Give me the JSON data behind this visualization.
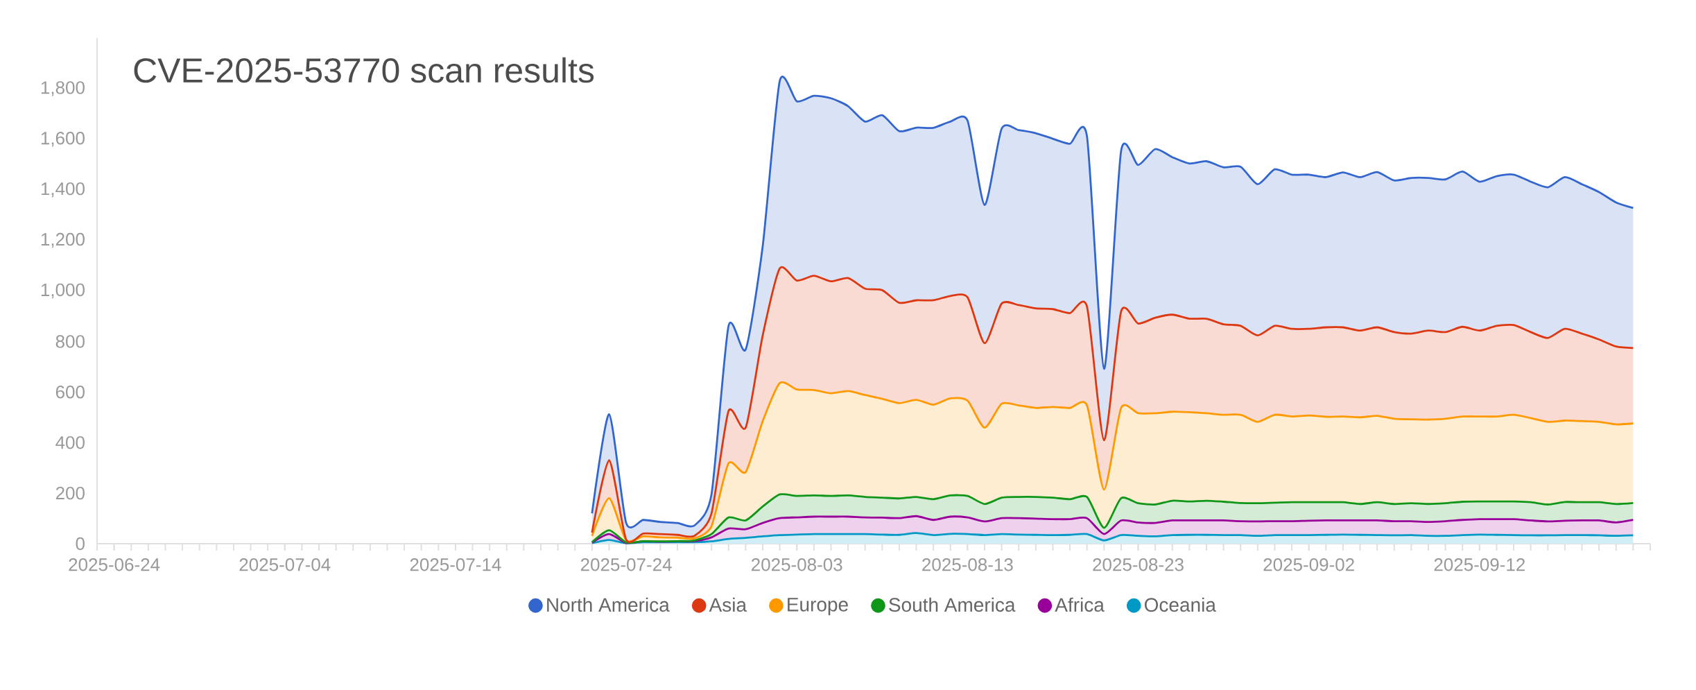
{
  "chart_data": {
    "type": "area",
    "title": "CVE-2025-53770 scan results",
    "stacked": true,
    "legend": "bottom",
    "x": [
      "2025-07-22",
      "2025-07-23",
      "2025-07-24",
      "2025-07-25",
      "2025-07-26",
      "2025-07-27",
      "2025-07-28",
      "2025-07-29",
      "2025-07-30",
      "2025-07-31",
      "2025-08-01",
      "2025-08-02",
      "2025-08-03",
      "2025-08-04",
      "2025-08-05",
      "2025-08-06",
      "2025-08-07",
      "2025-08-08",
      "2025-08-09",
      "2025-08-10",
      "2025-08-11",
      "2025-08-12",
      "2025-08-13",
      "2025-08-14",
      "2025-08-15",
      "2025-08-16",
      "2025-08-17",
      "2025-08-18",
      "2025-08-19",
      "2025-08-20",
      "2025-08-21",
      "2025-08-22",
      "2025-08-23",
      "2025-08-24",
      "2025-08-25",
      "2025-08-26",
      "2025-08-27",
      "2025-08-28",
      "2025-08-29",
      "2025-08-30",
      "2025-08-31",
      "2025-09-01",
      "2025-09-02",
      "2025-09-03",
      "2025-09-04",
      "2025-09-05",
      "2025-09-06",
      "2025-09-07",
      "2025-09-08",
      "2025-09-09",
      "2025-09-10",
      "2025-09-11",
      "2025-09-12",
      "2025-09-13",
      "2025-09-14",
      "2025-09-15",
      "2025-09-16",
      "2025-09-17",
      "2025-09-18",
      "2025-09-19",
      "2025-09-20",
      "2025-09-21"
    ],
    "xlim": [
      "2025-06-23",
      "2025-09-22"
    ],
    "xticks": [
      "2025-06-24",
      "2025-07-04",
      "2025-07-14",
      "2025-07-24",
      "2025-08-03",
      "2025-08-13",
      "2025-08-23",
      "2025-09-02",
      "2025-09-12"
    ],
    "ylim": [
      0,
      2000
    ],
    "yticks": [
      0,
      200,
      400,
      600,
      800,
      {
        "value": 1000,
        "label": "1,000"
      },
      {
        "value": 1200,
        "label": "1,200"
      },
      {
        "value": 1400,
        "label": "1,400"
      },
      {
        "value": 1600,
        "label": "1,600"
      },
      {
        "value": 1800,
        "label": "1,800"
      }
    ],
    "series": [
      {
        "name": "Oceania",
        "color": "#0099c6",
        "values": [
          2,
          15,
          2,
          6,
          6,
          6,
          6,
          9,
          19,
          23,
          29,
          34,
          36,
          38,
          38,
          38,
          38,
          36,
          35,
          42,
          34,
          39,
          38,
          34,
          38,
          36,
          35,
          34,
          35,
          38,
          13,
          34,
          31,
          29,
          34,
          35,
          35,
          34,
          34,
          31,
          34,
          34,
          34,
          35,
          36,
          35,
          34,
          33,
          34,
          31,
          31,
          34,
          36,
          35,
          34,
          33,
          33,
          34,
          34,
          33,
          31,
          33
        ]
      },
      {
        "name": "Africa",
        "color": "#990099",
        "values": [
          2,
          23,
          1,
          3,
          2,
          3,
          4,
          16,
          41,
          34,
          53,
          67,
          68,
          69,
          69,
          69,
          66,
          67,
          66,
          67,
          60,
          68,
          66,
          54,
          63,
          65,
          64,
          63,
          62,
          63,
          25,
          58,
          53,
          53,
          58,
          57,
          57,
          58,
          55,
          57,
          55,
          55,
          57,
          57,
          56,
          57,
          58,
          56,
          55,
          55,
          58,
          60,
          61,
          62,
          63,
          59,
          55,
          57,
          58,
          59,
          53,
          61
        ]
      },
      {
        "name": "South America",
        "color": "#109618",
        "values": [
          2,
          15,
          2,
          1,
          1,
          1,
          3,
          13,
          44,
          35,
          65,
          94,
          85,
          84,
          82,
          84,
          81,
          79,
          78,
          76,
          82,
          84,
          85,
          69,
          81,
          84,
          86,
          85,
          79,
          84,
          25,
          88,
          76,
          73,
          78,
          75,
          78,
          74,
          72,
          72,
          73,
          75,
          73,
          72,
          72,
          65,
          72,
          68,
          71,
          71,
          71,
          72,
          70,
          70,
          70,
          72,
          67,
          74,
          72,
          72,
          73,
          67
        ]
      },
      {
        "name": "Europe",
        "color": "#ff9900",
        "values": [
          25,
          127,
          8,
          19,
          16,
          14,
          8,
          31,
          214,
          191,
          338,
          441,
          421,
          417,
          406,
          413,
          403,
          391,
          377,
          384,
          374,
          384,
          377,
          302,
          372,
          362,
          352,
          359,
          361,
          362,
          151,
          357,
          356,
          361,
          352,
          353,
          346,
          344,
          349,
          322,
          348,
          339,
          343,
          338,
          339,
          343,
          342,
          337,
          332,
          334,
          334,
          337,
          336,
          336,
          343,
          333,
          327,
          322,
          321,
          318,
          315,
          315
        ]
      },
      {
        "name": "Asia",
        "color": "#dc3912",
        "values": [
          13,
          150,
          3,
          11,
          13,
          11,
          10,
          51,
          207,
          176,
          339,
          453,
          431,
          452,
          443,
          447,
          421,
          430,
          397,
          394,
          413,
          405,
          409,
          334,
          396,
          397,
          394,
          387,
          375,
          391,
          195,
          382,
          355,
          378,
          384,
          370,
          374,
          358,
          352,
          342,
          352,
          347,
          343,
          354,
          353,
          343,
          350,
          343,
          339,
          352,
          343,
          355,
          340,
          359,
          355,
          340,
          332,
          363,
          346,
          326,
          308,
          298
        ]
      },
      {
        "name": "North America",
        "color": "#3366cc",
        "values": [
          76,
          182,
          66,
          54,
          48,
          47,
          41,
          75,
          337,
          309,
          353,
          742,
          709,
          712,
          724,
          680,
          661,
          692,
          679,
          683,
          682,
          690,
          699,
          547,
          692,
          692,
          693,
          674,
          670,
          673,
          283,
          635,
          627,
          667,
          623,
          614,
          623,
          621,
          629,
          598,
          619,
          610,
          610,
          594,
          613,
          607,
          614,
          600,
          616,
          604,
          604,
          614,
          589,
          592,
          595,
          595,
          596,
          600,
          591,
          583,
          570,
          554
        ]
      }
    ]
  }
}
